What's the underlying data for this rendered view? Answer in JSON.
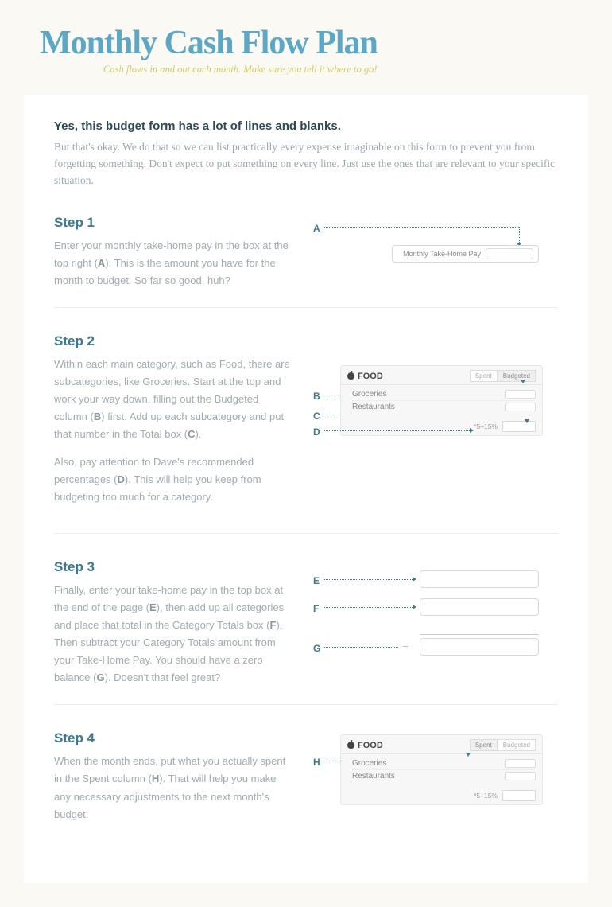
{
  "title": "Monthly Cash Flow Plan",
  "subtitle": "Cash flows in and out each month. Make sure you tell it where to go!",
  "intro": {
    "heading": "Yes, this budget form has a lot of lines and blanks.",
    "body": "But that's okay. We do that so we can list practically every expense imaginable on this form to prevent you from forgetting something. Don't expect to put something on every line. Just use the ones that are relevant to your specific situation."
  },
  "steps": [
    {
      "title": "Step 1",
      "body_html": "Enter your monthly take-home pay in the box at the top right (<b>A</b>). This is the amount you have for the month to budget. So far so good, huh?",
      "markers": [
        "A"
      ],
      "illus_label_a": "Monthly Take-Home Pay"
    },
    {
      "title": "Step 2",
      "body_html": "<p>Within each main category, such as Food, there are subcategories, like Groceries. Start at the top and work your way down, filling out the Budgeted column (<b>B</b>) first. Add up each subcategory and put that number in the Total box (<b>C</b>).</p><p>Also, pay attention to Dave's recommended percentages (<b>D</b>). This will help you keep from budgeting too much for a category.</p>",
      "markers": [
        "B",
        "C",
        "D"
      ],
      "panel_title": "FOOD",
      "tab1": "Spent",
      "tab2": "Budgeted",
      "row1": "Groceries",
      "row2": "Restaurants",
      "pct": "*5–15%"
    },
    {
      "title": "Step 3",
      "body_html": "Finally, enter your take-home pay in the top box at the end of the page (<b>E</b>), then add up all categories and place that total in the Category Totals box (<b>F</b>). Then subtract your Category Totals amount from your Take-Home Pay. You should have a zero balance (<b>G</b>). Doesn't that feel great?",
      "markers": [
        "E",
        "F",
        "G"
      ]
    },
    {
      "title": "Step 4",
      "body_html": "When the month ends, put what you actually spent in the Spent column (<b>H</b>). That will help you make any necessary adjustments to the next month's budget.",
      "markers": [
        "H"
      ],
      "panel_title": "FOOD",
      "tab1": "Spent",
      "tab2": "Budgeted",
      "row1": "Groceries",
      "row2": "Restaurants",
      "pct": "*5–15%"
    }
  ]
}
